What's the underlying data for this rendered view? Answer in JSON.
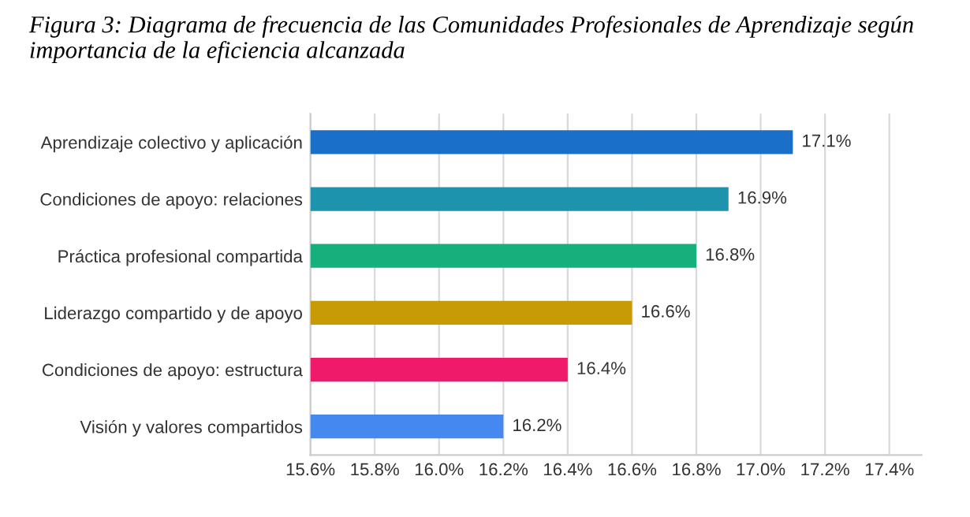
{
  "chart_data": {
    "type": "bar",
    "orientation": "horizontal",
    "title": "Figura 3: Diagrama de frecuencia de las Comunidades Profesionales de Aprendizaje según importancia de la eficiencia alcanzada",
    "categories": [
      "Aprendizaje colectivo y aplicación",
      "Condiciones de apoyo: relaciones",
      "Práctica profesional compartida",
      "Liderazgo compartido y de apoyo",
      "Condiciones de apoyo: estructura",
      "Visión y valores compartidos"
    ],
    "values": [
      17.1,
      16.9,
      16.8,
      16.6,
      16.4,
      16.2
    ],
    "colors": [
      "#1a6fc9",
      "#1e93ad",
      "#17b07c",
      "#c79b06",
      "#ef1a6a",
      "#4589f0"
    ],
    "value_labels": [
      "17.1%",
      "16.9%",
      "16.8%",
      "16.6%",
      "16.4%",
      "16.2%"
    ],
    "xlim": [
      15.6,
      17.5
    ],
    "xticks": [
      {
        "value": 15.6,
        "label": "15.6%"
      },
      {
        "value": 15.8,
        "label": "15.8%"
      },
      {
        "value": 16.0,
        "label": "16.0%"
      },
      {
        "value": 16.2,
        "label": "16.2%"
      },
      {
        "value": 16.4,
        "label": "16.4%"
      },
      {
        "value": 16.6,
        "label": "16.6%"
      },
      {
        "value": 16.8,
        "label": "16.8%"
      },
      {
        "value": 17.0,
        "label": "17.0%"
      },
      {
        "value": 17.2,
        "label": "17.2%"
      },
      {
        "value": 17.4,
        "label": "17.4%"
      }
    ],
    "grid": "x",
    "legend": false
  }
}
